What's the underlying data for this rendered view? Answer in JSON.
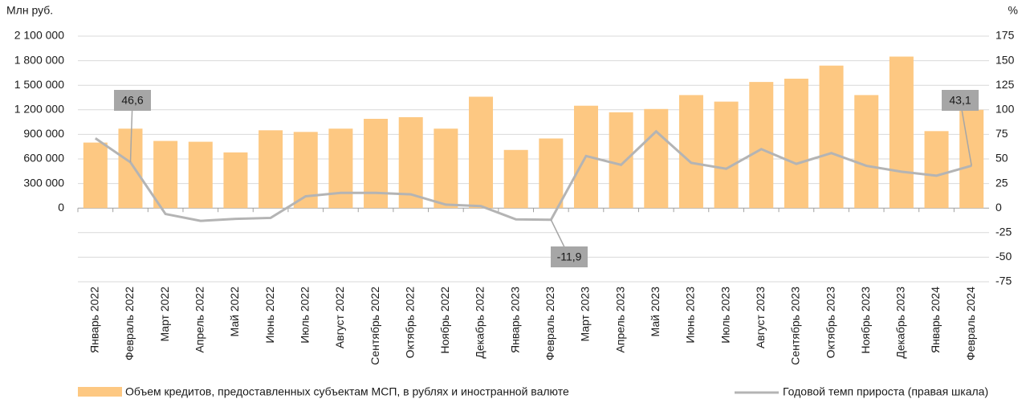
{
  "chart_data": {
    "type": "bar_line",
    "y_label": "Млн руб.",
    "y2_label": "%",
    "categories": [
      "Январь 2022",
      "Февраль 2022",
      "Март 2022",
      "Апрель 2022",
      "Май 2022",
      "Июнь 2022",
      "Июль 2022",
      "Август 2022",
      "Сентябрь 2022",
      "Октябрь 2022",
      "Ноябрь 2022",
      "Декабрь 2022",
      "Январь 2023",
      "Февраль 2023",
      "Март 2023",
      "Апрель 2023",
      "Май 2023",
      "Июнь 2023",
      "Июль 2023",
      "Август 2023",
      "Сентябрь 2023",
      "Октябрь 2023",
      "Ноябрь 2023",
      "Декабрь 2023",
      "Январь 2024",
      "Февраль 2024"
    ],
    "series": [
      {
        "name": "Объем кредитов, предоставленных субъектам МСП, в рублях и иностранной валюте",
        "type": "bar",
        "color": "#fdc882",
        "values": [
          800000,
          970000,
          820000,
          810000,
          680000,
          950000,
          930000,
          970000,
          1090000,
          1110000,
          970000,
          1360000,
          710000,
          850000,
          1250000,
          1170000,
          1210000,
          1380000,
          1300000,
          1540000,
          1580000,
          1740000,
          1380000,
          1850000,
          940000,
          1200000
        ]
      },
      {
        "name": "Годовой темп прироста (правая шкала)",
        "type": "line",
        "axis": "y2",
        "color": "#b4b4b4",
        "values": [
          71,
          46.6,
          -6,
          -13,
          -11,
          -10,
          12,
          15.5,
          15.5,
          14,
          3.5,
          2,
          -11.5,
          -11.9,
          53,
          44,
          78,
          46,
          40,
          60,
          45,
          56,
          43,
          37,
          33,
          43.1
        ],
        "value_labels": [
          null,
          "46,6",
          null,
          null,
          null,
          null,
          null,
          null,
          null,
          null,
          null,
          null,
          null,
          "-11,9",
          null,
          null,
          null,
          null,
          null,
          null,
          null,
          null,
          null,
          null,
          null,
          "43,1"
        ]
      }
    ],
    "ylim": [
      -900000,
      2100000
    ],
    "yticks": [
      0,
      {
        "value": 300000,
        "label": "300 000"
      },
      {
        "value": 600000,
        "label": "600 000"
      },
      {
        "value": 900000,
        "label": "900 000"
      },
      {
        "value": 1200000,
        "label": "1 200 000"
      },
      {
        "value": 1500000,
        "label": "1 500 000"
      },
      {
        "value": 1800000,
        "label": "1 800 000"
      },
      {
        "value": 2100000,
        "label": "2 100 000"
      }
    ],
    "y2lim": [
      -75,
      175
    ],
    "y2ticks": [
      -75,
      -50,
      -25,
      0,
      25,
      50,
      75,
      100,
      125,
      150,
      175
    ],
    "grid": true
  }
}
